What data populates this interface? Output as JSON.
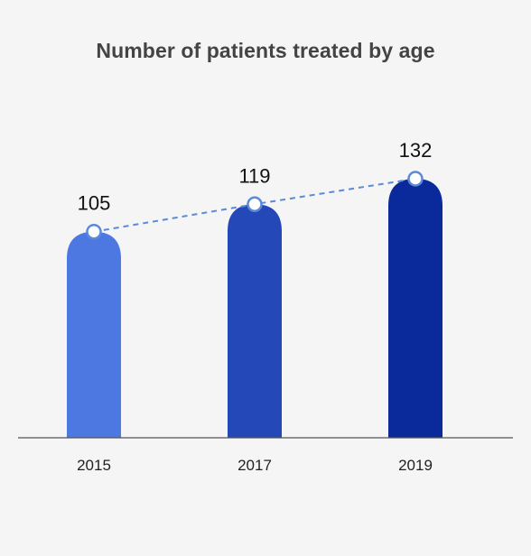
{
  "chart_data": {
    "type": "bar",
    "title": "Number of patients treated by age",
    "categories": [
      "2015",
      "2017",
      "2019"
    ],
    "values": [
      105,
      119,
      132
    ],
    "data_labels": [
      "105",
      "119",
      "132"
    ],
    "xlabel": "",
    "ylabel": "",
    "ylim": [
      0,
      155
    ],
    "grid": false,
    "legend": "none",
    "trend_line": "dashed line connecting bar tops",
    "colors": {
      "bars": [
        "#4d78e2",
        "#2548b8",
        "#0a2a9c"
      ],
      "trend_line": "#5b8ad8",
      "marker_fill": "#ffffff",
      "marker_stroke": "#5b8ad8",
      "baseline": "#555555",
      "background": "#f5f5f5"
    }
  }
}
